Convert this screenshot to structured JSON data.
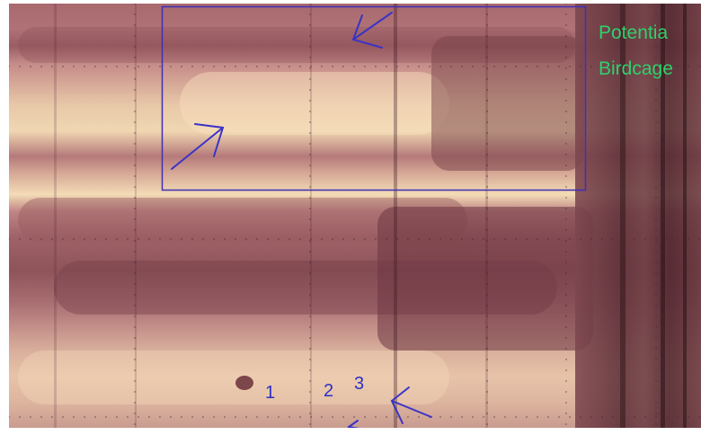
{
  "annotations": {
    "caption_line1": "Potentia",
    "caption_line2": "Birdcage",
    "numbers": [
      "1",
      "2",
      "3"
    ]
  },
  "colors": {
    "box": "#3f2fb8",
    "arrows": "#3a33c6",
    "caption": "#2fd16b",
    "numbers": "#2b2fc4"
  },
  "icons": [
    "arrow-icon",
    "arrow-icon",
    "arrow-icon",
    "arrow-icon"
  ]
}
